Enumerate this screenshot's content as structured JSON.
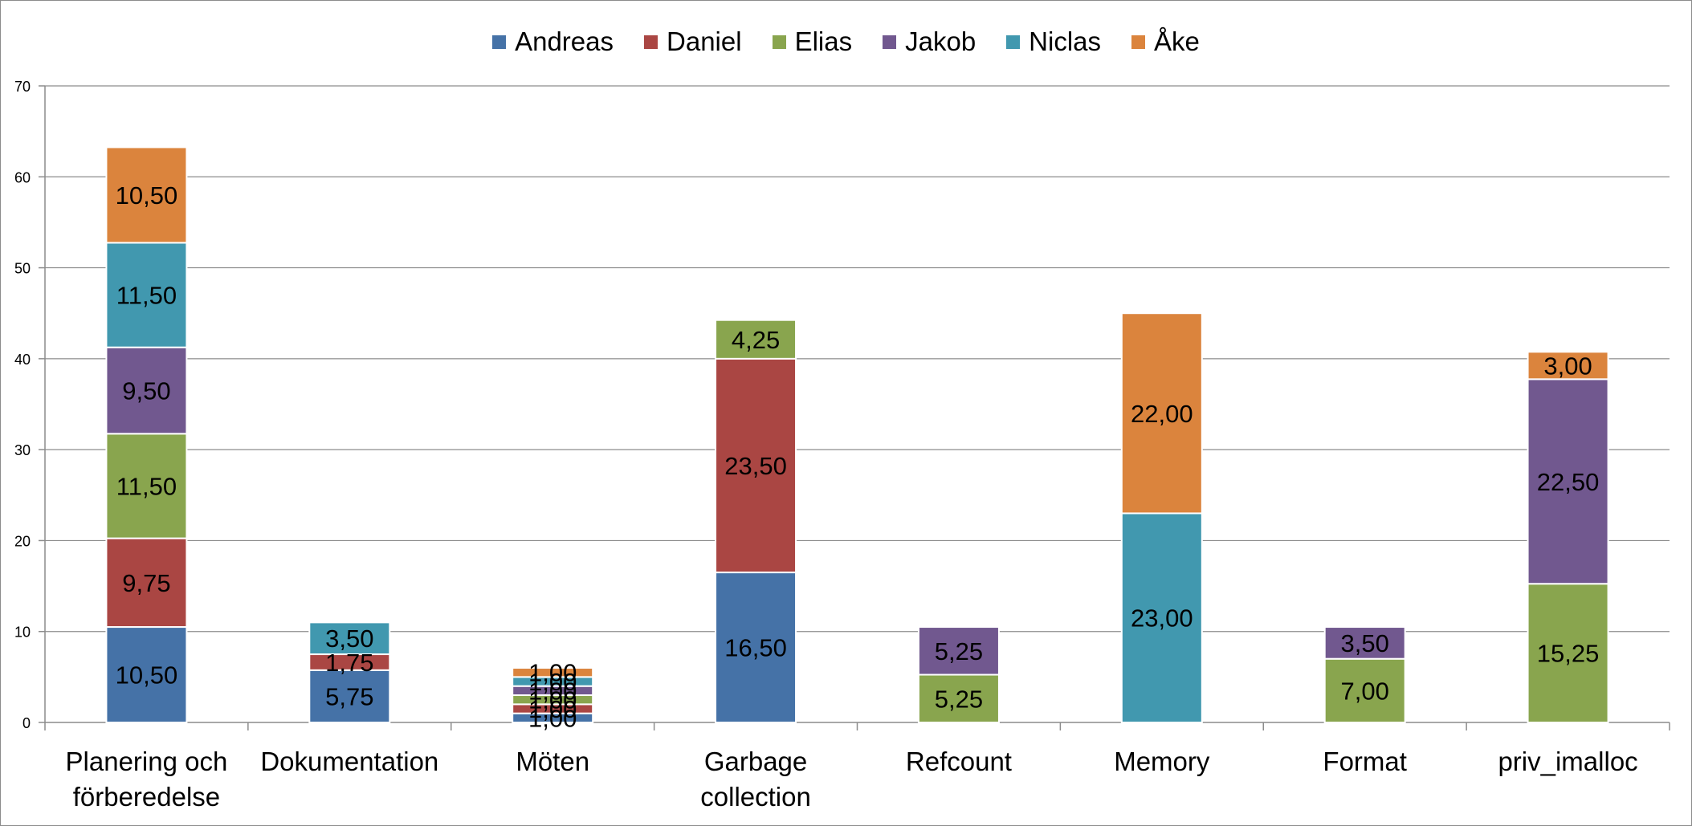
{
  "chart_data": {
    "type": "bar",
    "stacked": true,
    "categories": [
      "Planering och förberedelse",
      "Dokumentation",
      "Möten",
      "Garbage collection",
      "Refcount",
      "Memory",
      "Format",
      "priv_imalloc"
    ],
    "category_lines": [
      [
        "Planering och",
        "förberedelse"
      ],
      [
        "Dokumentation"
      ],
      [
        "Möten"
      ],
      [
        "Garbage",
        "collection"
      ],
      [
        "Refcount"
      ],
      [
        "Memory"
      ],
      [
        "Format"
      ],
      [
        "priv_imalloc"
      ]
    ],
    "series": [
      {
        "name": "Andreas",
        "color": "#4572a7",
        "values": [
          10.5,
          5.75,
          1.0,
          16.5,
          0,
          0,
          0,
          0
        ]
      },
      {
        "name": "Daniel",
        "color": "#aa4643",
        "values": [
          9.75,
          1.75,
          1.0,
          23.5,
          0,
          0,
          0,
          0
        ]
      },
      {
        "name": "Elias",
        "color": "#89a54e",
        "values": [
          11.5,
          0,
          1.0,
          4.25,
          5.25,
          0,
          7.0,
          15.25
        ]
      },
      {
        "name": "Jakob",
        "color": "#71588f",
        "values": [
          9.5,
          0,
          1.0,
          0,
          5.25,
          0,
          3.5,
          22.5
        ]
      },
      {
        "name": "Niclas",
        "color": "#4198af",
        "values": [
          11.5,
          3.5,
          1.0,
          0,
          0,
          23.0,
          0,
          0
        ]
      },
      {
        "name": "Åke",
        "color": "#db843d",
        "values": [
          10.5,
          0,
          1.0,
          0,
          0,
          22.0,
          0,
          3.0
        ]
      }
    ],
    "ylim": [
      0,
      70
    ],
    "yticks": [
      0,
      10,
      20,
      30,
      40,
      50,
      60,
      70
    ],
    "value_format": "decimal-comma-2",
    "grid": true,
    "legend_position": "top",
    "title": "",
    "xlabel": "",
    "ylabel": ""
  }
}
